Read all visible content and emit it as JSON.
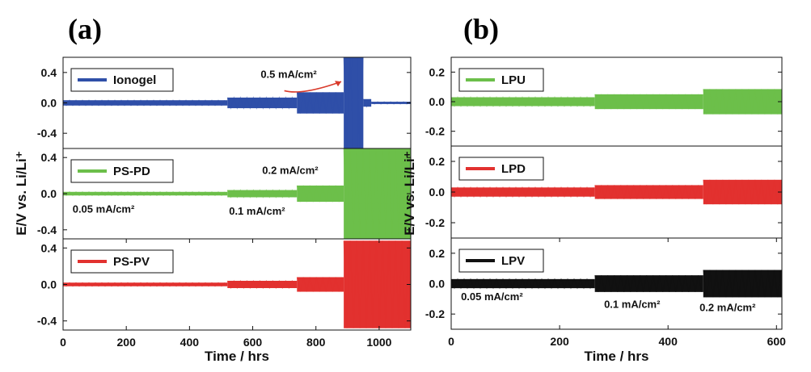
{
  "panel_labels": {
    "a": "(a)",
    "b": "(b)"
  },
  "chart_data": [
    {
      "type": "line",
      "panel": "(a)",
      "xlabel": "Time / hrs",
      "ylabel": "E/V vs. Li/Li⁺",
      "xlim": [
        0,
        1100
      ],
      "xticks": [
        0,
        200,
        400,
        600,
        800,
        1000
      ],
      "grid": false,
      "subplots": [
        {
          "series": [
            {
              "name": "Ionogel",
              "color": "#2f4fa8"
            }
          ],
          "ylim": [
            -0.6,
            0.6
          ],
          "yticks": [
            0.4,
            0.0,
            -0.4
          ],
          "ytick_labels": [
            "0.4",
            "0.0",
            "-0.4"
          ],
          "envelope": [
            {
              "x0": 0,
              "x1": 520,
              "amp": 0.035
            },
            {
              "x0": 520,
              "x1": 740,
              "amp": 0.07
            },
            {
              "x0": 740,
              "x1": 888,
              "amp": 0.14
            },
            {
              "x0": 888,
              "x1": 950,
              "amp": 0.6
            },
            {
              "x0": 950,
              "x1": 975,
              "amp": 0.05
            },
            {
              "x0": 975,
              "x1": 1100,
              "amp": 0.015
            }
          ],
          "spike": {
            "x": 925,
            "amp": 0.6
          },
          "annotations": [
            {
              "text": "0.5 mA/cm²",
              "x": 625,
              "y": 0.33
            }
          ]
        },
        {
          "series": [
            {
              "name": "PS-PD",
              "color": "#6cbf4a"
            }
          ],
          "ylim": [
            -0.5,
            0.5
          ],
          "yticks": [
            0.4,
            0.0,
            -0.4
          ],
          "ytick_labels": [
            "0.4",
            "0.0",
            "-0.4"
          ],
          "envelope": [
            {
              "x0": 0,
              "x1": 520,
              "amp": 0.02
            },
            {
              "x0": 520,
              "x1": 740,
              "amp": 0.04
            },
            {
              "x0": 740,
              "x1": 888,
              "amp": 0.09
            },
            {
              "x0": 888,
              "x1": 1100,
              "amp": 0.5
            }
          ],
          "annotations": [
            {
              "text": "0.2 mA/cm²",
              "x": 630,
              "y": 0.22
            },
            {
              "text": "0.05 mA/cm²",
              "x": 30,
              "y": -0.21
            },
            {
              "text": "0.1 mA/cm²",
              "x": 525,
              "y": -0.23
            }
          ]
        },
        {
          "series": [
            {
              "name": "PS-PV",
              "color": "#e2312f"
            }
          ],
          "ylim": [
            -0.5,
            0.5
          ],
          "yticks": [
            0.4,
            0.0,
            -0.4
          ],
          "ytick_labels": [
            "0.4",
            "0.0",
            "-0.4"
          ],
          "envelope": [
            {
              "x0": 0,
              "x1": 520,
              "amp": 0.02
            },
            {
              "x0": 520,
              "x1": 740,
              "amp": 0.04
            },
            {
              "x0": 740,
              "x1": 888,
              "amp": 0.08
            },
            {
              "x0": 888,
              "x1": 1100,
              "amp": 0.48
            }
          ]
        }
      ]
    },
    {
      "type": "line",
      "panel": "(b)",
      "xlabel": "Time / hrs",
      "ylabel": "E/V vs. Li/Li⁺",
      "xlim": [
        0,
        610
      ],
      "xticks": [
        0,
        200,
        400,
        600
      ],
      "grid": false,
      "subplots": [
        {
          "series": [
            {
              "name": "LPU",
              "color": "#6cbf4a"
            }
          ],
          "ylim": [
            -0.3,
            0.3
          ],
          "yticks": [
            0.2,
            0.0,
            -0.2
          ],
          "ytick_labels": [
            "0.2",
            "0.0",
            "-0.2"
          ],
          "envelope": [
            {
              "x0": 0,
              "x1": 265,
              "amp": 0.03
            },
            {
              "x0": 265,
              "x1": 465,
              "amp": 0.05
            },
            {
              "x0": 465,
              "x1": 610,
              "amp": 0.085
            }
          ]
        },
        {
          "series": [
            {
              "name": "LPD",
              "color": "#e2312f"
            }
          ],
          "ylim": [
            -0.3,
            0.3
          ],
          "yticks": [
            0.2,
            0.0,
            -0.2
          ],
          "ytick_labels": [
            "0.2",
            "0.0",
            "-0.2"
          ],
          "envelope": [
            {
              "x0": 0,
              "x1": 265,
              "amp": 0.03
            },
            {
              "x0": 265,
              "x1": 465,
              "amp": 0.045
            },
            {
              "x0": 465,
              "x1": 610,
              "amp": 0.08
            }
          ]
        },
        {
          "series": [
            {
              "name": "LPV",
              "color": "#111111"
            }
          ],
          "ylim": [
            -0.3,
            0.3
          ],
          "yticks": [
            0.2,
            0.0,
            -0.2
          ],
          "ytick_labels": [
            "0.2",
            "0.0",
            "-0.2"
          ],
          "envelope": [
            {
              "x0": 0,
              "x1": 265,
              "amp": 0.03
            },
            {
              "x0": 265,
              "x1": 465,
              "amp": 0.055
            },
            {
              "x0": 465,
              "x1": 610,
              "amp": 0.09
            }
          ],
          "annotations": [
            {
              "text": "0.05 mA/cm²",
              "x": 18,
              "y": -0.11
            },
            {
              "text": "0.1 mA/cm²",
              "x": 282,
              "y": -0.16
            },
            {
              "text": "0.2 mA/cm²",
              "x": 458,
              "y": -0.18
            }
          ]
        }
      ]
    }
  ]
}
